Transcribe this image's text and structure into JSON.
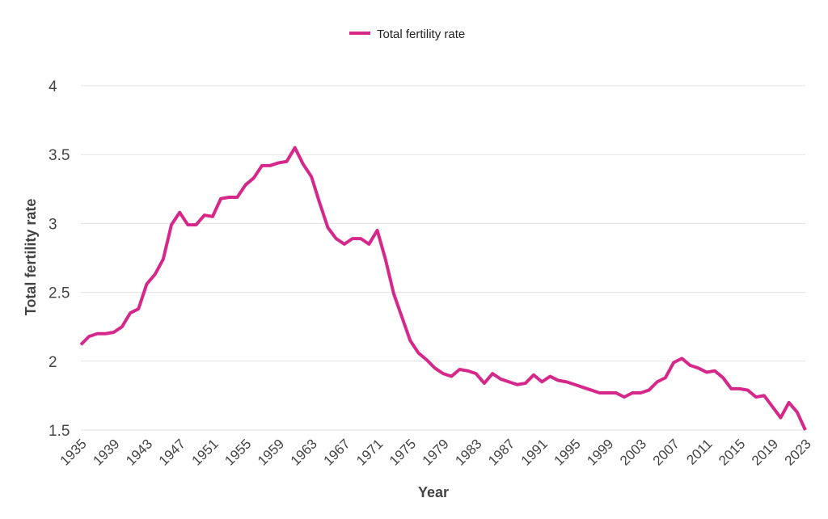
{
  "chart_data": {
    "type": "line",
    "title": "",
    "xlabel": "Year",
    "ylabel": "Total fertility rate",
    "ylim": [
      1.5,
      4
    ],
    "xlim": [
      1935,
      2023
    ],
    "yticks": [
      "1.5",
      "2",
      "2.5",
      "3",
      "3.5",
      "4"
    ],
    "xticks": [
      "1935",
      "1939",
      "1943",
      "1947",
      "1951",
      "1955",
      "1959",
      "1963",
      "1967",
      "1971",
      "1975",
      "1979",
      "1983",
      "1987",
      "1991",
      "1995",
      "1999",
      "2003",
      "2007",
      "2011",
      "2015",
      "2019",
      "2023"
    ],
    "grid": true,
    "legend_position": "top-center",
    "series": [
      {
        "name": "Total fertility rate",
        "color": "#d6288a",
        "x": [
          1935,
          1936,
          1937,
          1938,
          1939,
          1940,
          1941,
          1942,
          1943,
          1944,
          1945,
          1946,
          1947,
          1948,
          1949,
          1950,
          1951,
          1952,
          1953,
          1954,
          1955,
          1956,
          1957,
          1958,
          1959,
          1960,
          1961,
          1962,
          1963,
          1964,
          1965,
          1966,
          1967,
          1968,
          1969,
          1970,
          1971,
          1972,
          1973,
          1974,
          1975,
          1976,
          1977,
          1978,
          1979,
          1980,
          1981,
          1982,
          1983,
          1984,
          1985,
          1986,
          1987,
          1988,
          1989,
          1990,
          1991,
          1992,
          1993,
          1994,
          1995,
          1996,
          1997,
          1998,
          1999,
          2000,
          2001,
          2002,
          2003,
          2004,
          2005,
          2006,
          2007,
          2008,
          2009,
          2010,
          2011,
          2012,
          2013,
          2014,
          2015,
          2016,
          2017,
          2018,
          2019,
          2020,
          2021,
          2022,
          2023
        ],
        "values": [
          2.12,
          2.18,
          2.2,
          2.2,
          2.21,
          2.25,
          2.35,
          2.38,
          2.56,
          2.63,
          2.74,
          2.99,
          3.08,
          2.99,
          2.99,
          3.06,
          3.05,
          3.18,
          3.19,
          3.19,
          3.28,
          3.33,
          3.42,
          3.42,
          3.44,
          3.45,
          3.55,
          3.43,
          3.34,
          3.15,
          2.97,
          2.89,
          2.85,
          2.89,
          2.89,
          2.85,
          2.95,
          2.74,
          2.49,
          2.32,
          2.15,
          2.06,
          2.01,
          1.95,
          1.91,
          1.89,
          1.94,
          1.93,
          1.91,
          1.84,
          1.91,
          1.87,
          1.85,
          1.83,
          1.84,
          1.9,
          1.85,
          1.89,
          1.86,
          1.85,
          1.83,
          1.81,
          1.79,
          1.77,
          1.77,
          1.77,
          1.74,
          1.77,
          1.77,
          1.79,
          1.85,
          1.88,
          1.99,
          2.02,
          1.97,
          1.95,
          1.92,
          1.93,
          1.88,
          1.8,
          1.8,
          1.79,
          1.74,
          1.75,
          1.67,
          1.59,
          1.7,
          1.63,
          1.5
        ]
      }
    ]
  }
}
